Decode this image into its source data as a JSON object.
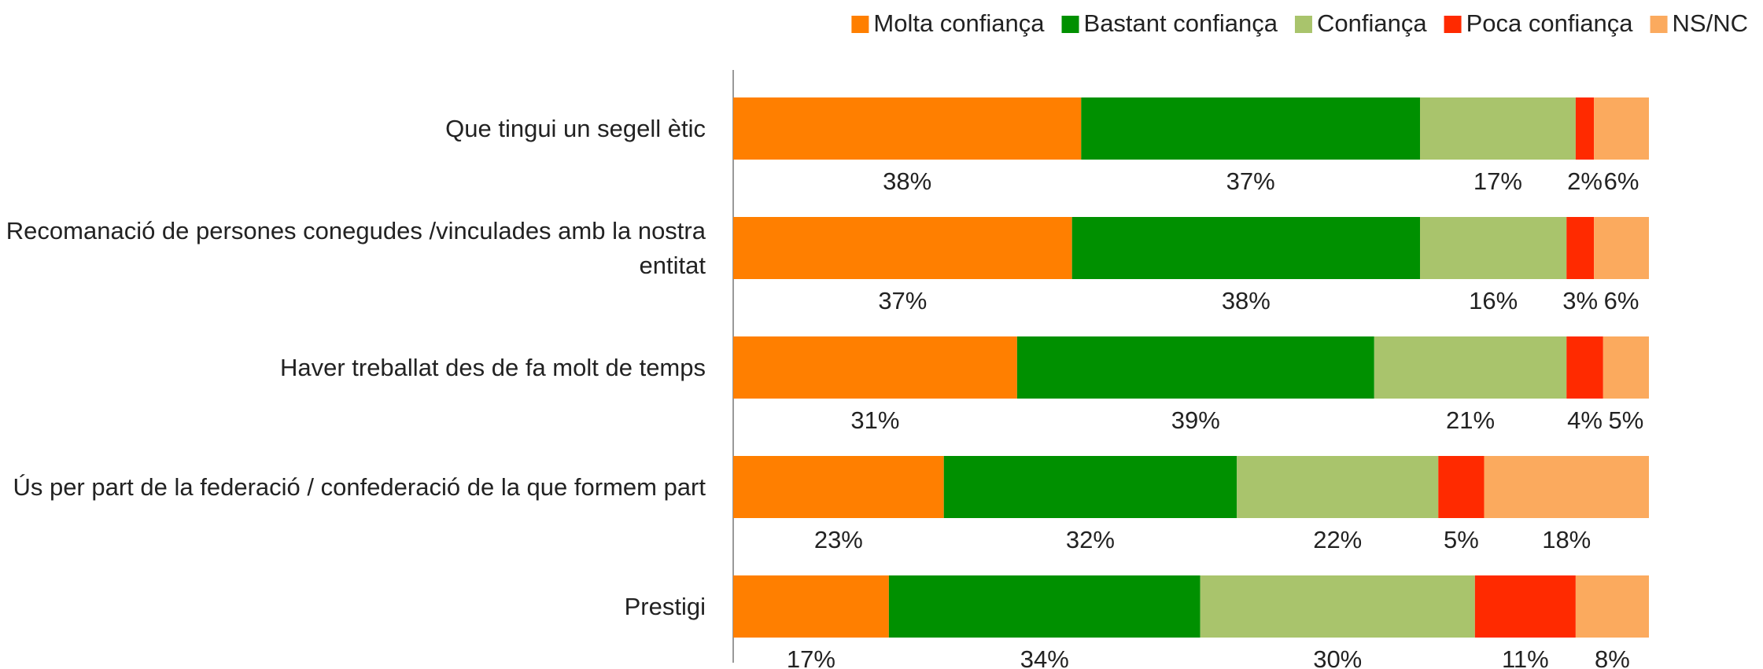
{
  "chart_data": {
    "type": "stacked_barh",
    "categories": [
      "Que tingui un segell ètic",
      "Recomanació de persones conegudes /vinculades amb la nostra entitat",
      "Haver treballat des de fa molt de temps",
      "Ús per part de la federació / confederació de la que formem part",
      "Prestigi"
    ],
    "series": [
      {
        "name": "Molta confiança",
        "color": "#ff7f00",
        "values": [
          38,
          37,
          31,
          23,
          17
        ],
        "value_labels": [
          "38%",
          "37%",
          "31%",
          "23%",
          "17%"
        ]
      },
      {
        "name": "Bastant confiança",
        "color": "#009000",
        "values": [
          37,
          38,
          39,
          32,
          34
        ],
        "value_labels": [
          "37%",
          "38%",
          "39%",
          "32%",
          "34%"
        ]
      },
      {
        "name": "Confiança",
        "color": "#a9c46c",
        "values": [
          17,
          16,
          21,
          22,
          30
        ],
        "value_labels": [
          "17%",
          "16%",
          "21%",
          "22%",
          "30%"
        ]
      },
      {
        "name": "Poca confiança",
        "color": "#ff2a00",
        "values": [
          2,
          3,
          4,
          5,
          11
        ],
        "value_labels": [
          "2%",
          "3%",
          "4%",
          "5%",
          "11%"
        ]
      },
      {
        "name": "NS/NC",
        "color": "#fbaa5e",
        "values": [
          6,
          6,
          5,
          18,
          8
        ],
        "value_labels": [
          "6%",
          "6%",
          "5%",
          "18%",
          "8%"
        ]
      }
    ],
    "legend": "top-right"
  }
}
